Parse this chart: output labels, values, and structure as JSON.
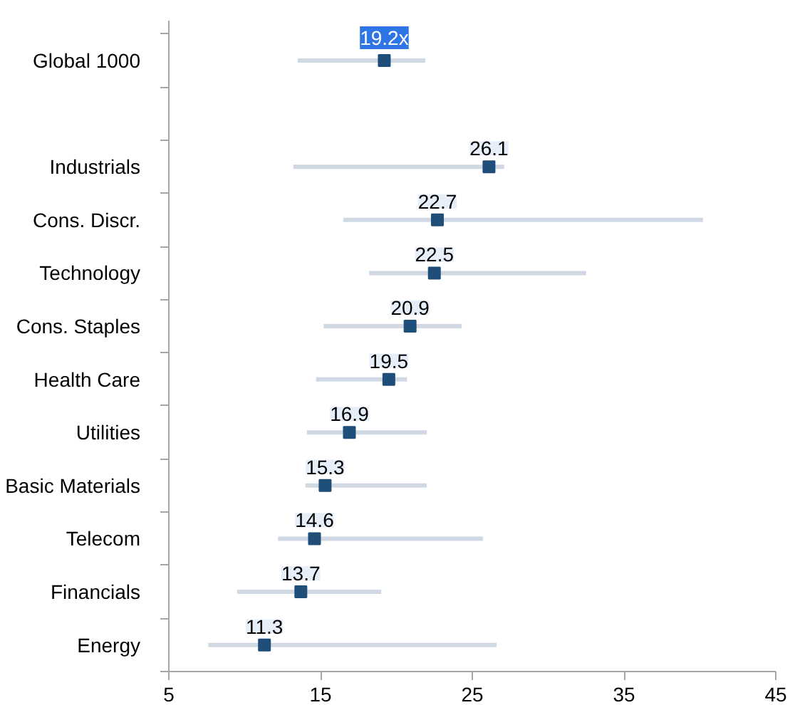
{
  "chart_data": {
    "type": "scatter",
    "orientation": "horizontal",
    "marker": "square",
    "grid": false,
    "categories": [
      "Global 1000",
      null,
      "Industrials",
      "Cons. Discr.",
      "Technology",
      "Cons. Staples",
      "Health Care",
      "Utilities",
      "Basic Materials",
      "Telecom",
      "Financials",
      "Energy"
    ],
    "series": [
      {
        "color": "#1f4e79",
        "values": [
          19.2,
          null,
          26.1,
          22.7,
          22.5,
          20.9,
          19.5,
          16.9,
          15.3,
          14.6,
          13.7,
          11.3
        ],
        "value_labels": [
          "19.2x",
          null,
          "26.1",
          "22.7",
          "22.5",
          "20.9",
          "19.5",
          "16.9",
          "15.3",
          "14.6",
          "13.7",
          "11.3"
        ],
        "errors": [
          [
            13.5,
            21.9
          ],
          null,
          [
            13.2,
            27.1
          ],
          [
            16.5,
            40.2
          ],
          [
            18.2,
            32.5
          ],
          [
            15.2,
            24.3
          ],
          [
            14.7,
            20.7
          ],
          [
            14.1,
            22.0
          ],
          [
            14.0,
            22.0
          ],
          [
            12.2,
            25.7
          ],
          [
            9.5,
            19.0
          ],
          [
            7.6,
            26.6
          ]
        ]
      }
    ],
    "xlim": [
      5,
      45
    ],
    "xticks": [
      5,
      15,
      25,
      35,
      45
    ]
  }
}
